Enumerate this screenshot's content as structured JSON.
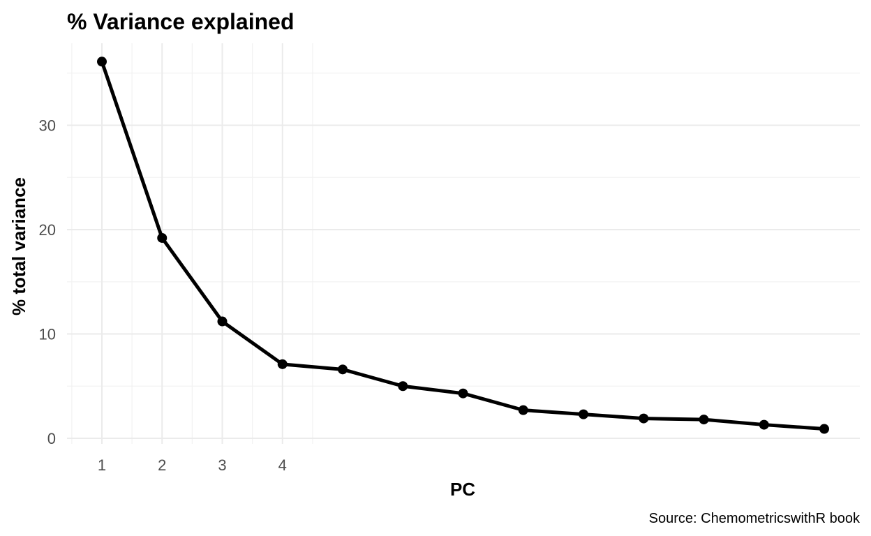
{
  "chart_data": {
    "type": "line",
    "title": "% Variance explained",
    "xlabel": "PC",
    "ylabel": "% total variance",
    "caption": "Source: ChemometricswithR book",
    "x": [
      1,
      2,
      3,
      4,
      5,
      6,
      7,
      8,
      9,
      10,
      11,
      12,
      13
    ],
    "x_ticks": [
      "1",
      "2",
      "3",
      "4"
    ],
    "y_ticks": [
      "0",
      "10",
      "20",
      "30"
    ],
    "ylim": [
      0,
      36.1
    ],
    "xlim": [
      1,
      13
    ],
    "grid": true,
    "series": [
      {
        "values": [
          36.1,
          19.2,
          11.2,
          7.1,
          6.6,
          5.0,
          4.3,
          2.7,
          2.3,
          1.9,
          1.8,
          1.3,
          0.9
        ],
        "color": "#000000"
      }
    ]
  }
}
